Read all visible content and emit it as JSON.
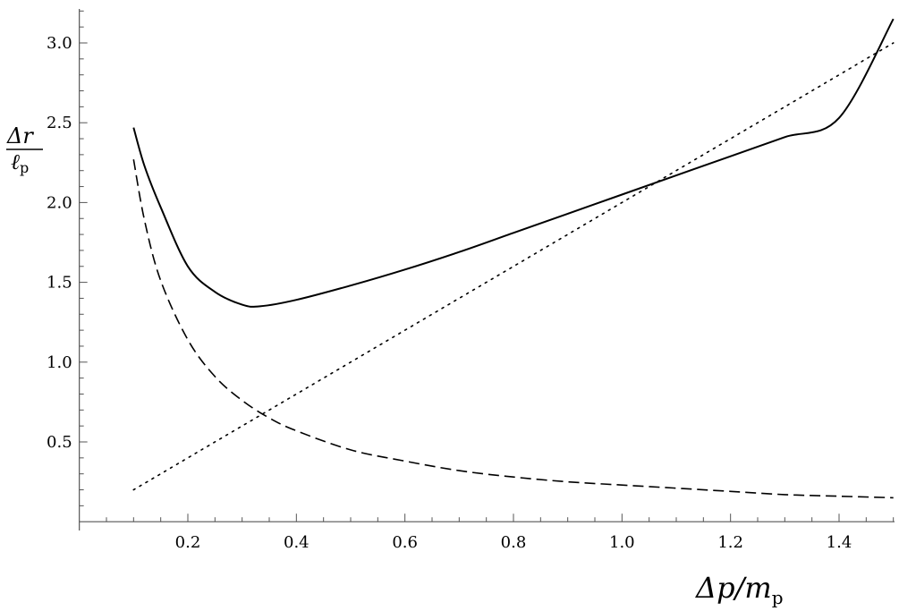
{
  "chart_data": {
    "type": "line",
    "xlabel": "Δp/m_p",
    "ylabel": "Δr/ℓ_p",
    "xlabel_parts": {
      "main": "Δp/m",
      "sub": "p"
    },
    "ylabel_parts": {
      "num": "Δr",
      "den": "ℓ",
      "den_sub": "p"
    },
    "xlim": [
      0.0,
      1.5
    ],
    "ylim": [
      0.0,
      3.2
    ],
    "x_ticks": [
      {
        "value": 0.2,
        "label": "0.2"
      },
      {
        "value": 0.4,
        "label": "0.4"
      },
      {
        "value": 0.6,
        "label": "0.6"
      },
      {
        "value": 0.8,
        "label": "0.8"
      },
      {
        "value": 1.0,
        "label": "1.0"
      },
      {
        "value": 1.2,
        "label": "1.2"
      },
      {
        "value": 1.4,
        "label": "1.4"
      }
    ],
    "y_ticks": [
      {
        "value": 0.5,
        "label": "0.5"
      },
      {
        "value": 1.0,
        "label": "1.0"
      },
      {
        "value": 1.5,
        "label": "1.5"
      },
      {
        "value": 2.0,
        "label": "2.0"
      },
      {
        "value": 2.5,
        "label": "2.5"
      },
      {
        "value": 3.0,
        "label": "3.0"
      }
    ],
    "grid": false,
    "series": [
      {
        "style": "solid",
        "color": "#000000",
        "x": [
          0.1,
          0.12,
          0.15,
          0.2,
          0.25,
          0.3,
          0.333,
          0.4,
          0.5,
          0.6,
          0.7,
          0.8,
          0.9,
          1.0,
          1.1,
          1.2,
          1.3,
          1.4,
          1.5
        ],
        "y": [
          2.47,
          2.23,
          1.97,
          1.6,
          1.44,
          1.36,
          1.35,
          1.39,
          1.48,
          1.58,
          1.69,
          1.81,
          1.93,
          2.05,
          2.17,
          2.29,
          2.41,
          2.53,
          3.15
        ]
      },
      {
        "style": "dashed",
        "color": "#000000",
        "x": [
          0.1,
          0.12,
          0.15,
          0.2,
          0.25,
          0.3,
          0.35,
          0.4,
          0.5,
          0.6,
          0.7,
          0.8,
          0.9,
          1.0,
          1.1,
          1.2,
          1.3,
          1.4,
          1.5
        ],
        "y": [
          2.27,
          1.89,
          1.51,
          1.14,
          0.91,
          0.76,
          0.65,
          0.57,
          0.45,
          0.38,
          0.32,
          0.28,
          0.25,
          0.23,
          0.21,
          0.19,
          0.17,
          0.16,
          0.15
        ]
      },
      {
        "style": "dotted",
        "color": "#000000",
        "x": [
          0.1,
          0.2,
          0.4,
          0.6,
          0.8,
          1.0,
          1.2,
          1.4,
          1.5
        ],
        "y": [
          0.2,
          0.4,
          0.8,
          1.2,
          1.6,
          2.0,
          2.4,
          2.8,
          3.0
        ]
      }
    ]
  }
}
